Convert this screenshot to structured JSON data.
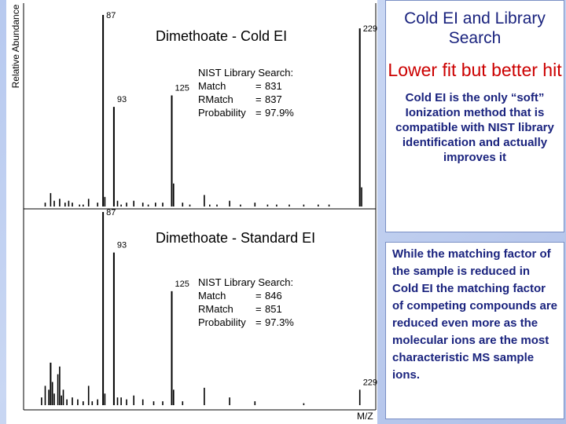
{
  "y_axis_label": "Relative Abundance",
  "x_axis_label": "M/Z",
  "chart_data": [
    {
      "type": "bar",
      "title": "Dimethoate - Cold EI",
      "ylabel": "Relative Abundance",
      "xlim": [
        50,
        240
      ],
      "ylim": [
        0,
        100
      ],
      "peaks": [
        {
          "mz": 55,
          "value": 2
        },
        {
          "mz": 58,
          "value": 7
        },
        {
          "mz": 60,
          "value": 3
        },
        {
          "mz": 63,
          "value": 4
        },
        {
          "mz": 66,
          "value": 2
        },
        {
          "mz": 68,
          "value": 3
        },
        {
          "mz": 70,
          "value": 2
        },
        {
          "mz": 74,
          "value": 1
        },
        {
          "mz": 76,
          "value": 1
        },
        {
          "mz": 79,
          "value": 4
        },
        {
          "mz": 84,
          "value": 2
        },
        {
          "mz": 87,
          "value": 100,
          "label": "87"
        },
        {
          "mz": 88,
          "value": 5
        },
        {
          "mz": 93,
          "value": 52,
          "label": "93"
        },
        {
          "mz": 95,
          "value": 3
        },
        {
          "mz": 97,
          "value": 1
        },
        {
          "mz": 100,
          "value": 2
        },
        {
          "mz": 104,
          "value": 3
        },
        {
          "mz": 109,
          "value": 2
        },
        {
          "mz": 112,
          "value": 1
        },
        {
          "mz": 116,
          "value": 2
        },
        {
          "mz": 120,
          "value": 2
        },
        {
          "mz": 125,
          "value": 58,
          "label": "125"
        },
        {
          "mz": 126,
          "value": 12
        },
        {
          "mz": 131,
          "value": 2
        },
        {
          "mz": 135,
          "value": 1
        },
        {
          "mz": 143,
          "value": 6
        },
        {
          "mz": 146,
          "value": 1
        },
        {
          "mz": 150,
          "value": 1
        },
        {
          "mz": 157,
          "value": 3
        },
        {
          "mz": 163,
          "value": 1
        },
        {
          "mz": 171,
          "value": 2
        },
        {
          "mz": 178,
          "value": 1
        },
        {
          "mz": 183,
          "value": 1
        },
        {
          "mz": 190,
          "value": 1
        },
        {
          "mz": 198,
          "value": 1
        },
        {
          "mz": 206,
          "value": 1
        },
        {
          "mz": 212,
          "value": 1
        },
        {
          "mz": 229,
          "value": 93,
          "label": "229"
        },
        {
          "mz": 230,
          "value": 10
        }
      ],
      "annotation": {
        "heading": "NIST Library Search:",
        "rows": [
          {
            "name": "Match",
            "eq": "=",
            "value": "831"
          },
          {
            "name": "RMatch",
            "eq": "=",
            "value": "837"
          },
          {
            "name": "Probability",
            "eq": "=",
            "value": "97.9%"
          }
        ]
      }
    },
    {
      "type": "bar",
      "title": "Dimethoate - Standard EI",
      "xlabel": "M/Z",
      "xlim": [
        50,
        240
      ],
      "ylim": [
        0,
        100
      ],
      "peaks": [
        {
          "mz": 53,
          "value": 4
        },
        {
          "mz": 55,
          "value": 10
        },
        {
          "mz": 57,
          "value": 8
        },
        {
          "mz": 58,
          "value": 22
        },
        {
          "mz": 59,
          "value": 12
        },
        {
          "mz": 60,
          "value": 6
        },
        {
          "mz": 62,
          "value": 16
        },
        {
          "mz": 63,
          "value": 20
        },
        {
          "mz": 64,
          "value": 5
        },
        {
          "mz": 65,
          "value": 8
        },
        {
          "mz": 67,
          "value": 3
        },
        {
          "mz": 70,
          "value": 4
        },
        {
          "mz": 73,
          "value": 3
        },
        {
          "mz": 76,
          "value": 2
        },
        {
          "mz": 79,
          "value": 10
        },
        {
          "mz": 81,
          "value": 2
        },
        {
          "mz": 84,
          "value": 3
        },
        {
          "mz": 87,
          "value": 100,
          "label": "87"
        },
        {
          "mz": 88,
          "value": 6
        },
        {
          "mz": 93,
          "value": 79,
          "label": "93"
        },
        {
          "mz": 95,
          "value": 4
        },
        {
          "mz": 97,
          "value": 4
        },
        {
          "mz": 100,
          "value": 3
        },
        {
          "mz": 104,
          "value": 5
        },
        {
          "mz": 109,
          "value": 3
        },
        {
          "mz": 115,
          "value": 2
        },
        {
          "mz": 120,
          "value": 2
        },
        {
          "mz": 125,
          "value": 59,
          "label": "125"
        },
        {
          "mz": 126,
          "value": 8
        },
        {
          "mz": 131,
          "value": 2
        },
        {
          "mz": 143,
          "value": 9
        },
        {
          "mz": 157,
          "value": 4
        },
        {
          "mz": 171,
          "value": 2
        },
        {
          "mz": 198,
          "value": 1
        },
        {
          "mz": 229,
          "value": 8,
          "label": "229"
        }
      ],
      "annotation": {
        "heading": "NIST Library Search:",
        "rows": [
          {
            "name": "Match",
            "eq": "=",
            "value": "846"
          },
          {
            "name": "RMatch",
            "eq": "=",
            "value": "851"
          },
          {
            "name": "Probability",
            "eq": "=",
            "value": "97.3%"
          }
        ]
      }
    }
  ],
  "top_box": {
    "heading": "Cold EI and Library Search",
    "subheading": "Lower fit but better hit",
    "description": "Cold EI is the only “soft” Ionization method that is compatible with NIST library identification and actually improves it"
  },
  "bottom_box": {
    "text": "While the matching factor of the sample is reduced in Cold EI the matching factor of competing compounds are reduced even more as the molecular ions are the most characteristic MS sample ions."
  },
  "colors": {
    "background": "#b7c9ef",
    "box_text": "#1a237e",
    "highlight": "#cc0000",
    "box_border": "#7a8fc4"
  }
}
